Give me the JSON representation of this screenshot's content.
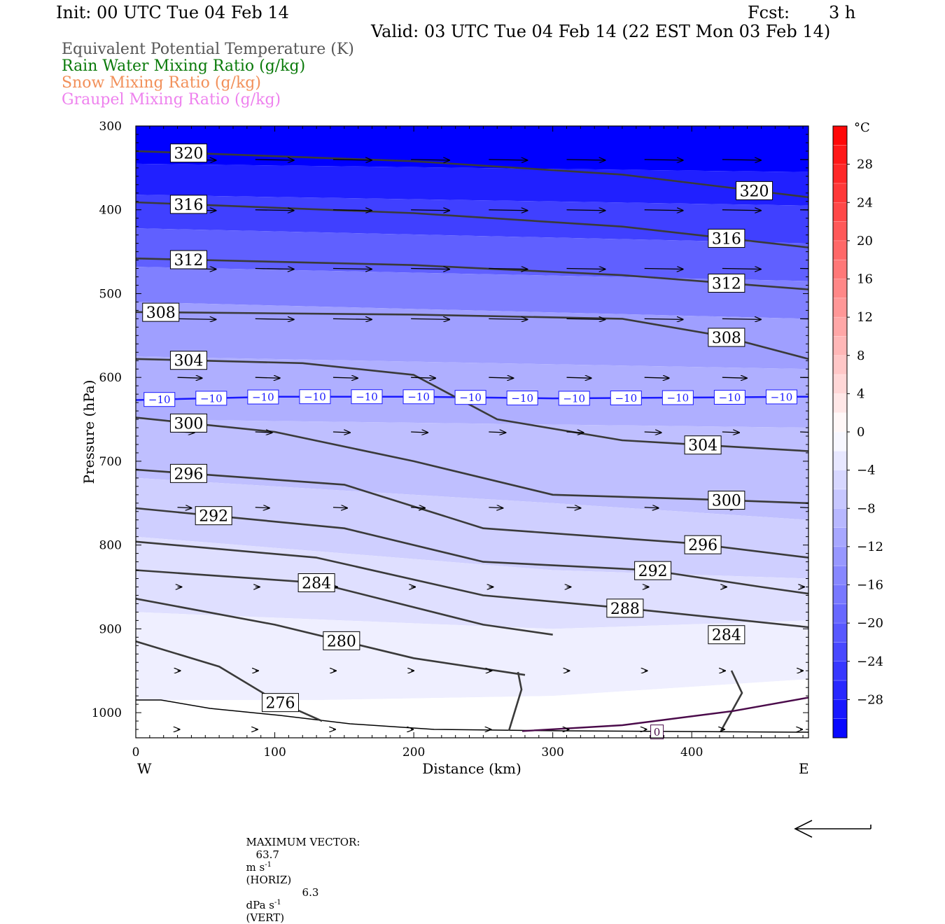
{
  "header": {
    "init": "Init: 00 UTC Tue 04 Feb 14",
    "fcst_label": "Fcst:",
    "fcst_value": "3 h",
    "valid": "Valid: 03 UTC Tue 04 Feb 14 (22 EST Mon 03 Feb 14)"
  },
  "legend": [
    {
      "text": "Equivalent Potential Temperature (K)",
      "color": "#555555"
    },
    {
      "text": "Rain Water Mixing Ratio (g/kg)",
      "color": "#0a7a0a"
    },
    {
      "text": "Snow Mixing Ratio (g/kg)",
      "color": "#f2905a"
    },
    {
      "text": "Graupel Mixing Ratio (g/kg)",
      "color": "#ee82ee"
    }
  ],
  "footer": {
    "max_vector_label": "MAXIMUM VECTOR:",
    "horiz_value": "63.7",
    "horiz_unit": "m s",
    "horiz_exp": "-1",
    "horiz_tag": "(HORIZ)",
    "vert_value": "6.3",
    "vert_unit": "dPa s",
    "vert_exp": "-1",
    "vert_tag": "(VERT)"
  },
  "chart_data": {
    "type": "cross-section",
    "xlabel": "Distance (km)",
    "ylabel": "Pressure (hPa)",
    "x_ticks": [
      0,
      100,
      200,
      300,
      400
    ],
    "y_ticks": [
      300,
      400,
      500,
      600,
      700,
      800,
      900,
      1000
    ],
    "xlim": [
      0,
      484
    ],
    "ylim": [
      300,
      1030
    ],
    "west_label": "W",
    "east_label": "E",
    "colorbar": {
      "unit": "°C",
      "ticks": [
        28,
        24,
        20,
        16,
        12,
        8,
        4,
        0,
        -4,
        -8,
        -12,
        -16,
        -20,
        -24,
        -28
      ],
      "tick_labels": [
        "28",
        "24",
        "20",
        "16",
        "12",
        "8",
        "4",
        "0",
        "−4",
        "−8",
        "−12",
        "−16",
        "−20",
        "−24",
        "−28"
      ],
      "range": [
        -32,
        32
      ]
    },
    "temperature_bands": [
      {
        "temp": -32,
        "points": [
          [
            0,
            300
          ],
          [
            484,
            300
          ],
          [
            484,
            355
          ],
          [
            0,
            345
          ]
        ]
      },
      {
        "temp": -28,
        "points": [
          [
            0,
            345
          ],
          [
            484,
            355
          ],
          [
            484,
            395
          ],
          [
            0,
            382
          ]
        ]
      },
      {
        "temp": -24,
        "points": [
          [
            0,
            382
          ],
          [
            484,
            395
          ],
          [
            484,
            440
          ],
          [
            0,
            422
          ]
        ]
      },
      {
        "temp": -20,
        "points": [
          [
            0,
            422
          ],
          [
            484,
            440
          ],
          [
            484,
            485
          ],
          [
            0,
            468
          ]
        ]
      },
      {
        "temp": -16,
        "points": [
          [
            0,
            468
          ],
          [
            484,
            485
          ],
          [
            484,
            530
          ],
          [
            0,
            510
          ]
        ]
      },
      {
        "temp": -12,
        "points": [
          [
            0,
            510
          ],
          [
            484,
            530
          ],
          [
            484,
            590
          ],
          [
            0,
            575
          ]
        ]
      },
      {
        "temp": -10,
        "points": [
          [
            0,
            575
          ],
          [
            484,
            590
          ],
          [
            484,
            660
          ],
          [
            0,
            650
          ]
        ]
      },
      {
        "temp": -8,
        "points": [
          [
            0,
            650
          ],
          [
            484,
            660
          ],
          [
            484,
            770
          ],
          [
            300,
            750
          ],
          [
            0,
            720
          ]
        ]
      },
      {
        "temp": -6,
        "points": [
          [
            0,
            720
          ],
          [
            300,
            750
          ],
          [
            484,
            770
          ],
          [
            484,
            840
          ],
          [
            300,
            830
          ],
          [
            0,
            790
          ]
        ]
      },
      {
        "temp": -4,
        "points": [
          [
            0,
            790
          ],
          [
            300,
            830
          ],
          [
            484,
            840
          ],
          [
            484,
            890
          ],
          [
            300,
            900
          ],
          [
            0,
            880
          ]
        ]
      },
      {
        "temp": -2,
        "points": [
          [
            0,
            880
          ],
          [
            300,
            900
          ],
          [
            484,
            890
          ],
          [
            484,
            960
          ],
          [
            300,
            980
          ],
          [
            130,
            985
          ],
          [
            0,
            985
          ]
        ]
      },
      {
        "temp": 0,
        "points": [
          [
            0,
            985
          ],
          [
            130,
            985
          ],
          [
            300,
            980
          ],
          [
            484,
            960
          ],
          [
            484,
            1030
          ],
          [
            0,
            1030
          ]
        ]
      }
    ],
    "theta_e_contours": [
      {
        "level": 320,
        "label_x": [
          38,
          445
        ],
        "points": [
          [
            0,
            330
          ],
          [
            200,
            342
          ],
          [
            350,
            358
          ],
          [
            484,
            385
          ]
        ]
      },
      {
        "level": 316,
        "label_x": [
          38,
          425
        ],
        "points": [
          [
            0,
            391
          ],
          [
            200,
            404
          ],
          [
            350,
            420
          ],
          [
            484,
            445
          ]
        ]
      },
      {
        "level": 312,
        "label_x": [
          38,
          425
        ],
        "points": [
          [
            0,
            458
          ],
          [
            200,
            466
          ],
          [
            350,
            478
          ],
          [
            484,
            495
          ]
        ]
      },
      {
        "level": 308,
        "label_x": [
          18,
          425
        ],
        "points": [
          [
            0,
            522
          ],
          [
            200,
            525
          ],
          [
            350,
            530
          ],
          [
            420,
            550
          ],
          [
            484,
            578
          ]
        ]
      },
      {
        "level": 304,
        "label_x": [
          38,
          408
        ],
        "points": [
          [
            0,
            578
          ],
          [
            120,
            583
          ],
          [
            200,
            597
          ],
          [
            260,
            650
          ],
          [
            350,
            675
          ],
          [
            484,
            688
          ]
        ]
      },
      {
        "level": 300,
        "label_x": [
          38,
          425
        ],
        "points": [
          [
            0,
            648
          ],
          [
            100,
            665
          ],
          [
            200,
            700
          ],
          [
            300,
            740
          ],
          [
            400,
            745
          ],
          [
            484,
            750
          ]
        ]
      },
      {
        "level": 296,
        "label_x": [
          38,
          408
        ],
        "points": [
          [
            0,
            710
          ],
          [
            150,
            728
          ],
          [
            250,
            780
          ],
          [
            400,
            798
          ],
          [
            484,
            815
          ]
        ]
      },
      {
        "level": 292,
        "label_x": [
          56,
          372
        ],
        "points": [
          [
            0,
            756
          ],
          [
            150,
            780
          ],
          [
            250,
            820
          ],
          [
            370,
            830
          ],
          [
            450,
            850
          ],
          [
            484,
            858
          ]
        ]
      },
      {
        "level": 288,
        "label_x": [
          352
        ],
        "points": [
          [
            0,
            796
          ],
          [
            130,
            815
          ],
          [
            250,
            860
          ],
          [
            350,
            875
          ],
          [
            484,
            898
          ]
        ]
      },
      {
        "level": 284,
        "label_x": [
          130,
          425
        ],
        "points": [
          [
            0,
            830
          ],
          [
            130,
            845
          ],
          [
            250,
            895
          ],
          [
            300,
            907
          ]
        ]
      },
      {
        "level": 280,
        "label_x": [
          148
        ],
        "points": [
          [
            0,
            864
          ],
          [
            100,
            895
          ],
          [
            200,
            935
          ],
          [
            280,
            955
          ]
        ]
      },
      {
        "level": 276,
        "label_x": [
          104
        ],
        "points": [
          [
            0,
            915
          ],
          [
            60,
            945
          ],
          [
            100,
            985
          ],
          [
            134,
            1010
          ]
        ]
      }
    ],
    "rain_contour": {
      "level": 0,
      "points": [
        [
          278,
          1022
        ],
        [
          350,
          1015
        ],
        [
          430,
          998
        ],
        [
          484,
          982
        ]
      ]
    },
    "freezing_line": {
      "temp": -10,
      "points": [
        [
          0,
          627
        ],
        [
          100,
          623
        ],
        [
          200,
          623
        ],
        [
          300,
          625
        ],
        [
          400,
          624
        ],
        [
          484,
          623
        ]
      ]
    }
  }
}
